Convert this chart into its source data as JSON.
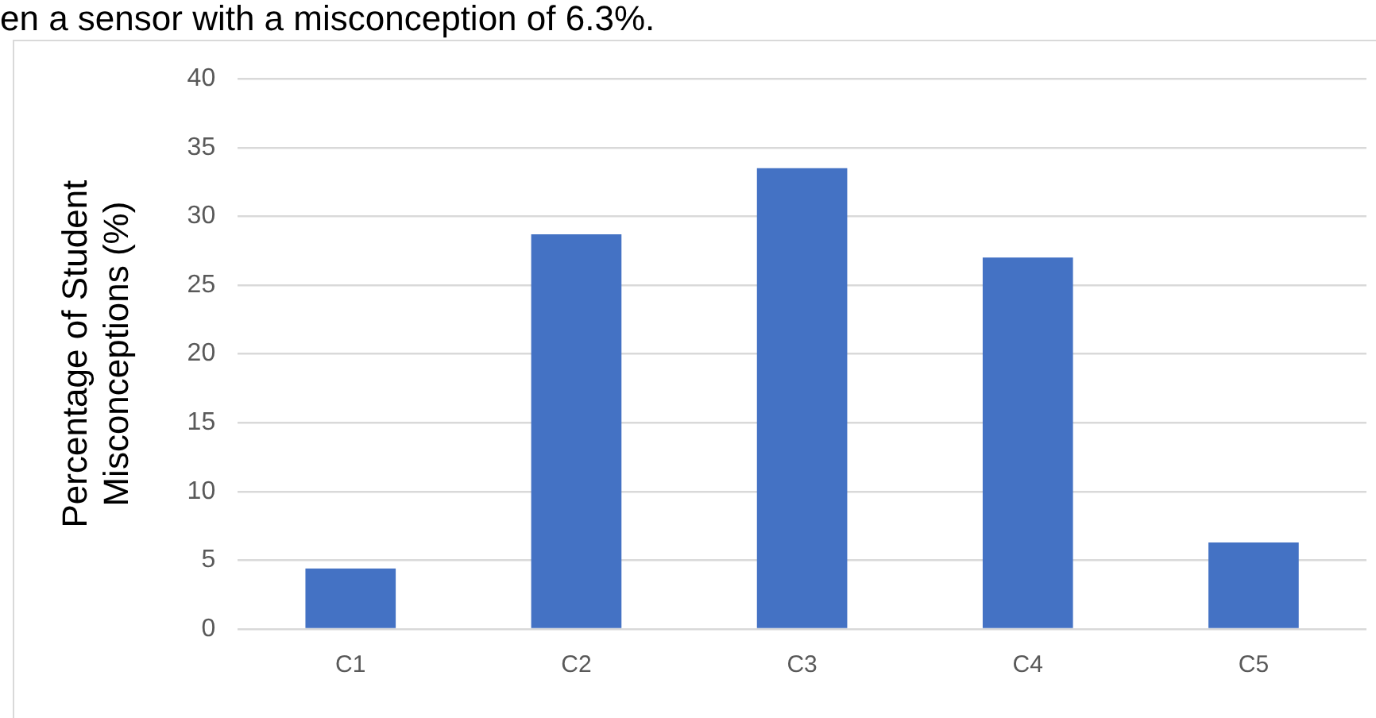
{
  "chart_data": {
    "type": "bar",
    "ylabel": "Percentage of Student Misconceptions (%)",
    "categories": [
      "C1",
      "C2",
      "C3",
      "C4",
      "C5"
    ],
    "values": [
      4.4,
      28.7,
      33.5,
      27.0,
      6.3
    ],
    "color": "#4472c4",
    "ylim": [
      0,
      40
    ],
    "yticks": [
      0,
      5,
      10,
      15,
      20,
      25,
      30,
      35,
      40
    ],
    "grid": "y",
    "legend": false,
    "annotations": [
      "en a sensor with a misconception of 6.3%."
    ]
  }
}
